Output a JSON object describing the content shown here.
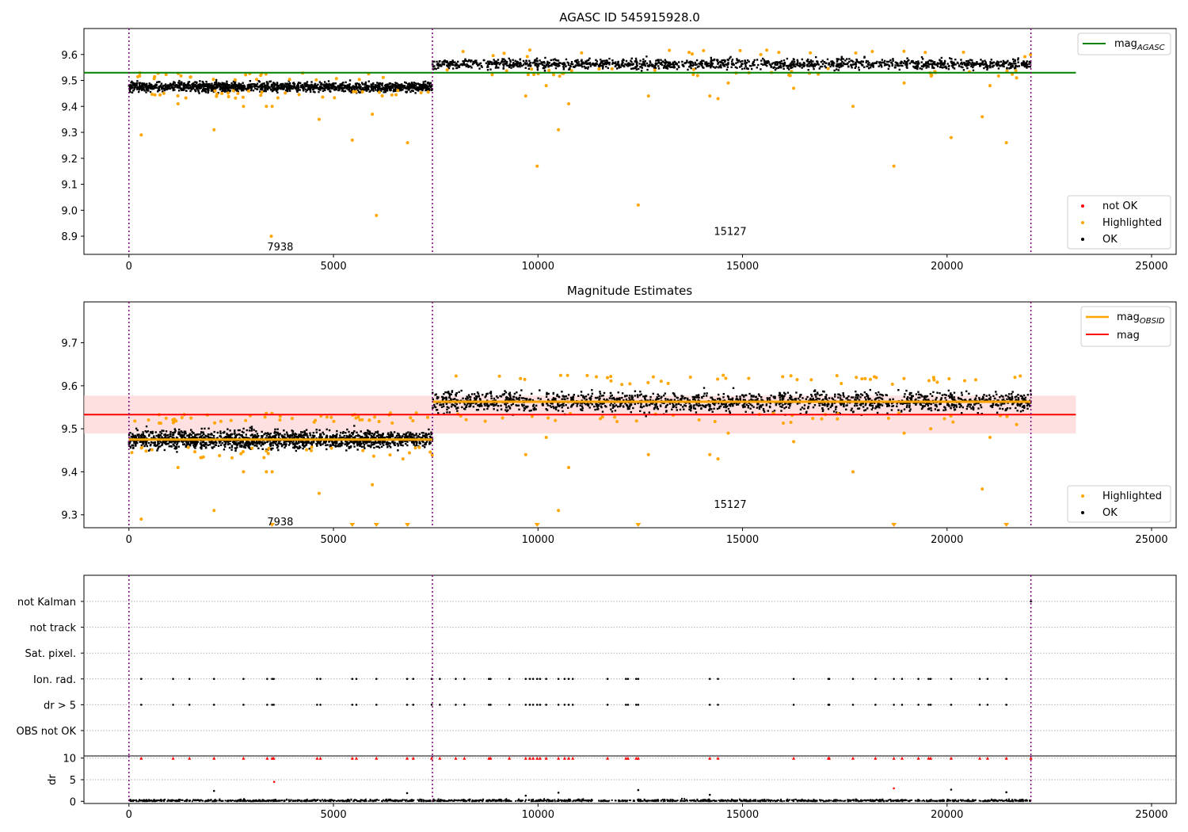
{
  "figure": {
    "colors": {
      "ok": "#000000",
      "highlighted": "#ffa500",
      "not_ok": "#ff0000",
      "mag_agasc": "#008000",
      "mag": "#ff0000",
      "mag_obsid": "#ffa500",
      "band": "#ffcccc",
      "obsid_boundary": "#800080",
      "grid": "#b0b0b0"
    }
  },
  "chart_data": [
    {
      "type": "scatter",
      "title": "AGASC ID 545915928.0",
      "xlabel": "",
      "ylabel": "",
      "xlim": [
        -1100,
        25600
      ],
      "ylim": [
        8.83,
        9.7
      ],
      "xticks": [
        0,
        5000,
        10000,
        15000,
        20000,
        25000
      ],
      "yticks": [
        8.9,
        9.0,
        9.1,
        9.2,
        9.3,
        9.4,
        9.5,
        9.6
      ],
      "legend_position": "top-right",
      "legend_entries": [
        "mag_AGASC"
      ],
      "legend_label": {
        "base": "mag",
        "sub": "AGASC"
      },
      "legend2_position": "bottom-right",
      "legend2_entries": [
        "not OK",
        "Highlighted",
        "OK"
      ],
      "reference_lines": [
        {
          "name": "mag_AGASC",
          "y": 9.53,
          "x_range": [
            -1100,
            23150
          ]
        }
      ],
      "obsid_boundaries": [
        0,
        7420,
        22050
      ],
      "obsids": [
        {
          "label": "7938",
          "x": 3700,
          "y": 8.86,
          "x_range": [
            0,
            7420
          ],
          "ok_band": [
            9.44,
            9.51
          ],
          "mean": 9.475
        },
        {
          "label": "15127",
          "x": 14700,
          "y": 8.92,
          "x_range": [
            7420,
            22050
          ],
          "ok_band": [
            9.525,
            9.6
          ],
          "mean": 9.563
        }
      ],
      "highlighted_points": [
        [
          300,
          9.29
        ],
        [
          2080,
          9.31
        ],
        [
          2800,
          9.4
        ],
        [
          3360,
          9.4
        ],
        [
          3500,
          9.4
        ],
        [
          4650,
          9.35
        ],
        [
          5460,
          9.27
        ],
        [
          5950,
          9.37
        ],
        [
          6050,
          8.98
        ],
        [
          6810,
          9.26
        ],
        [
          9700,
          9.44
        ],
        [
          9980,
          9.17
        ],
        [
          10200,
          9.48
        ],
        [
          10500,
          9.31
        ],
        [
          10750,
          9.41
        ],
        [
          12450,
          9.02
        ],
        [
          12700,
          9.44
        ],
        [
          14200,
          9.44
        ],
        [
          14400,
          9.43
        ],
        [
          14650,
          9.49
        ],
        [
          16250,
          9.47
        ],
        [
          17700,
          9.4
        ],
        [
          18700,
          9.17
        ],
        [
          18950,
          9.49
        ],
        [
          20100,
          9.28
        ],
        [
          20860,
          9.36
        ],
        [
          21050,
          9.48
        ],
        [
          21450,
          9.26
        ],
        [
          21700,
          9.51
        ],
        [
          1200,
          9.41
        ],
        [
          3480,
          8.9
        ]
      ]
    },
    {
      "type": "scatter",
      "title": "Magnitude Estimates",
      "xlabel": "",
      "ylabel": "",
      "xlim": [
        -1100,
        25600
      ],
      "ylim": [
        9.27,
        9.795
      ],
      "xticks": [
        0,
        5000,
        10000,
        15000,
        20000,
        25000
      ],
      "yticks": [
        9.3,
        9.4,
        9.5,
        9.6,
        9.7
      ],
      "legend_position": "top-right",
      "legend_entries": [
        "mag_OBSID",
        "mag"
      ],
      "legend_label": {
        "base": "mag",
        "sub": "OBSID"
      },
      "legend_mag_label": "mag",
      "legend2_position": "bottom-right",
      "legend2_entries": [
        "Highlighted",
        "OK"
      ],
      "mag_line": {
        "y": 9.533,
        "x_range": [
          -1100,
          23150
        ]
      },
      "mag_band": [
        9.489,
        9.577
      ],
      "obsid_boundaries": [
        0,
        7420,
        22050
      ],
      "obsids": [
        {
          "label": "7938",
          "x": 3700,
          "y": 9.285,
          "x_range": [
            0,
            7420
          ],
          "ok_band": [
            9.44,
            9.52
          ],
          "mean": 9.475
        },
        {
          "label": "15127",
          "x": 14700,
          "y": 9.325,
          "x_range": [
            7420,
            22050
          ],
          "ok_band": [
            9.52,
            9.61
          ],
          "mean": 9.563
        }
      ],
      "highlighted_points": [
        [
          300,
          9.29
        ],
        [
          2080,
          9.31
        ],
        [
          2800,
          9.4
        ],
        [
          3360,
          9.4
        ],
        [
          3500,
          9.4
        ],
        [
          4650,
          9.35
        ],
        [
          5950,
          9.37
        ],
        [
          9700,
          9.44
        ],
        [
          10200,
          9.48
        ],
        [
          10500,
          9.31
        ],
        [
          10750,
          9.41
        ],
        [
          12700,
          9.44
        ],
        [
          14200,
          9.44
        ],
        [
          14400,
          9.43
        ],
        [
          14650,
          9.49
        ],
        [
          16250,
          9.47
        ],
        [
          17700,
          9.4
        ],
        [
          18950,
          9.49
        ],
        [
          19600,
          9.5
        ],
        [
          20860,
          9.36
        ],
        [
          21050,
          9.48
        ],
        [
          21700,
          9.51
        ],
        [
          1200,
          9.41
        ],
        [
          6700,
          9.43
        ]
      ],
      "below_range_markers": [
        3500,
        5460,
        6050,
        6810,
        9980,
        12450,
        18700,
        21450
      ]
    },
    {
      "type": "scatter",
      "title": "",
      "xlabel": "",
      "ylabel": "",
      "xlim": [
        -1100,
        25600
      ],
      "categories": [
        "not Kalman",
        "not track",
        "Sat. pixel.",
        "Ion. rad.",
        "dr > 5",
        "OBS not OK"
      ],
      "obsid_boundaries": [
        0,
        7420,
        22050
      ],
      "flag_times": [
        300,
        1080,
        1480,
        2080,
        2800,
        3380,
        3500,
        3540,
        4600,
        4680,
        5460,
        5560,
        6050,
        6800,
        6950,
        7400,
        7600,
        7990,
        8200,
        8800,
        8840,
        9300,
        9700,
        9800,
        9880,
        9980,
        10050,
        10200,
        10500,
        10650,
        10750,
        10850,
        11700,
        12150,
        12200,
        12400,
        12450,
        14200,
        14400,
        16250,
        17100,
        17120,
        17700,
        18250,
        18700,
        18900,
        19300,
        19550,
        19600,
        20100,
        20800,
        20990,
        21450
      ],
      "not_kalman_times": [
        22050
      ]
    },
    {
      "type": "scatter",
      "title": "",
      "xlabel": "",
      "ylabel": "dr",
      "xlim": [
        -1100,
        25600
      ],
      "ylim": [
        -0.5,
        10.5
      ],
      "xticks": [
        0,
        5000,
        10000,
        15000,
        20000,
        25000
      ],
      "yticks": [
        0,
        5,
        10
      ],
      "obsid_boundaries": [
        0,
        7420,
        22050
      ],
      "clipped_value": 10,
      "clipped_times": [
        300,
        1080,
        1480,
        2080,
        2800,
        3380,
        3500,
        3540,
        4600,
        4680,
        5460,
        5560,
        6050,
        6800,
        6950,
        7400,
        7600,
        7990,
        8200,
        8800,
        8840,
        9300,
        9700,
        9800,
        9880,
        9980,
        10050,
        10200,
        10500,
        10650,
        10750,
        10850,
        11700,
        12150,
        12200,
        12400,
        12450,
        14200,
        14400,
        16250,
        17100,
        17120,
        17700,
        18250,
        18700,
        18900,
        19300,
        19550,
        19600,
        20100,
        20800,
        20990,
        21450,
        22050
      ],
      "not_ok_points": [
        [
          3550,
          4.5
        ],
        [
          18700,
          3.0
        ]
      ],
      "ok_outliers": [
        [
          2080,
          2.4
        ],
        [
          12450,
          2.6
        ],
        [
          20100,
          2.7
        ],
        [
          21450,
          2.1
        ],
        [
          6800,
          1.9
        ],
        [
          9700,
          1.3
        ],
        [
          10500,
          2.0
        ],
        [
          14200,
          1.5
        ]
      ],
      "ok_band": [
        0.0,
        0.9
      ]
    }
  ]
}
